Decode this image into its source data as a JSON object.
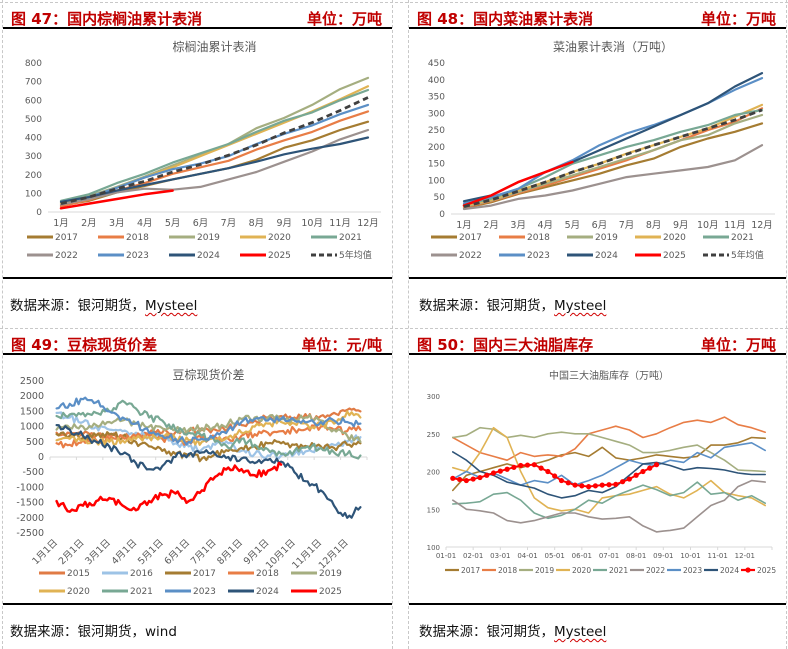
{
  "panels": [
    {
      "figure_label": "图 47：国内棕榈油累计表消",
      "unit_label": "单位：万吨",
      "source_prefix": "数据来源：银河期货，",
      "source_name": "Mysteel"
    },
    {
      "figure_label": "图 48：国内菜油累计表消",
      "unit_label": "单位：万吨",
      "source_prefix": "数据来源：银河期货，",
      "source_name": "Mysteel"
    },
    {
      "figure_label": "图 49：豆棕现货价差",
      "unit_label": "单位：元/吨",
      "source_prefix": "数据来源：银河期货，",
      "source_name": "wind"
    },
    {
      "figure_label": "图 50：国内三大油脂库存",
      "unit_label": "单位：万吨",
      "source_prefix": "数据来源：银河期货，",
      "source_name": "Mysteel"
    }
  ],
  "colors": {
    "2015": "#e07b45",
    "2016": "#9dc3e6",
    "2017": "#a57c32",
    "2018": "#e87d46",
    "2019": "#a5ae80",
    "2020": "#e0b354",
    "2021": "#78a894",
    "2022": "#9c918f",
    "2023": "#5b8fc6",
    "2024": "#2e5478",
    "2025": "#ff0000",
    "avg": "#404040",
    "title_red": "#c00000"
  },
  "chart_data": [
    {
      "type": "line",
      "title": "棕榈油累计表消",
      "xlabel": "",
      "ylabel": "",
      "categories": [
        "1月",
        "2月",
        "3月",
        "4月",
        "5月",
        "6月",
        "7月",
        "8月",
        "9月",
        "10月",
        "11月",
        "12月"
      ],
      "ylim": [
        0,
        800
      ],
      "yticks": [
        0,
        100,
        200,
        300,
        400,
        500,
        600,
        700,
        800
      ],
      "legend_position": "bottom",
      "series": [
        {
          "name": "2017",
          "color_key": "2017",
          "values": [
            35,
            60,
            105,
            140,
            175,
            205,
            235,
            280,
            345,
            385,
            440,
            485
          ]
        },
        {
          "name": "2018",
          "color_key": "2018",
          "values": [
            30,
            65,
            115,
            155,
            205,
            240,
            275,
            335,
            385,
            430,
            490,
            540
          ]
        },
        {
          "name": "2019",
          "color_key": "2019",
          "values": [
            50,
            85,
            135,
            190,
            250,
            305,
            365,
            450,
            505,
            575,
            660,
            720
          ]
        },
        {
          "name": "2020",
          "color_key": "2020",
          "values": [
            45,
            75,
            130,
            185,
            240,
            300,
            360,
            420,
            480,
            540,
            605,
            675
          ]
        },
        {
          "name": "2021",
          "color_key": "2021",
          "values": [
            60,
            95,
            155,
            205,
            265,
            315,
            365,
            430,
            490,
            535,
            600,
            655
          ]
        },
        {
          "name": "2022",
          "color_key": "2022",
          "values": [
            40,
            70,
            105,
            125,
            120,
            135,
            175,
            215,
            270,
            325,
            390,
            440
          ]
        },
        {
          "name": "2023",
          "color_key": "2023",
          "values": [
            55,
            80,
            130,
            185,
            230,
            260,
            300,
            365,
            420,
            465,
            525,
            575
          ]
        },
        {
          "name": "2024",
          "color_key": "2024",
          "values": [
            55,
            80,
            115,
            145,
            175,
            205,
            235,
            270,
            310,
            340,
            365,
            400
          ]
        },
        {
          "name": "2025",
          "color_key": "2025",
          "values": [
            20,
            45,
            70,
            95,
            115
          ]
        },
        {
          "name": "5年均值",
          "color_key": "avg",
          "dashed": true,
          "values": [
            45,
            80,
            125,
            165,
            215,
            255,
            305,
            360,
            425,
            480,
            545,
            615
          ]
        }
      ]
    },
    {
      "type": "line",
      "title": "菜油累计表消（万吨）",
      "xlabel": "",
      "ylabel": "",
      "categories": [
        "1月",
        "2月",
        "3月",
        "4月",
        "5月",
        "6月",
        "7月",
        "8月",
        "9月",
        "10月",
        "11月",
        "12月"
      ],
      "ylim": [
        0,
        450
      ],
      "yticks": [
        0,
        50,
        100,
        150,
        200,
        250,
        300,
        350,
        400,
        450
      ],
      "legend_position": "bottom",
      "series": [
        {
          "name": "2017",
          "color_key": "2017",
          "values": [
            18,
            35,
            60,
            80,
            100,
            120,
            145,
            165,
            200,
            225,
            245,
            270
          ]
        },
        {
          "name": "2018",
          "color_key": "2018",
          "values": [
            20,
            38,
            62,
            85,
            110,
            135,
            160,
            190,
            220,
            250,
            275,
            315
          ]
        },
        {
          "name": "2019",
          "color_key": "2019",
          "values": [
            22,
            40,
            65,
            90,
            115,
            140,
            165,
            190,
            220,
            235,
            270,
            295
          ]
        },
        {
          "name": "2020",
          "color_key": "2020",
          "values": [
            25,
            42,
            70,
            95,
            125,
            150,
            180,
            205,
            230,
            255,
            290,
            325
          ]
        },
        {
          "name": "2021",
          "color_key": "2021",
          "values": [
            28,
            45,
            75,
            110,
            150,
            175,
            200,
            220,
            245,
            265,
            295,
            310
          ]
        },
        {
          "name": "2022",
          "color_key": "2022",
          "values": [
            15,
            25,
            45,
            55,
            70,
            90,
            110,
            120,
            130,
            140,
            160,
            205
          ]
        },
        {
          "name": "2023",
          "color_key": "2023",
          "values": [
            32,
            50,
            75,
            125,
            160,
            205,
            240,
            265,
            295,
            330,
            370,
            405
          ]
        },
        {
          "name": "2024",
          "color_key": "2024",
          "values": [
            38,
            55,
            95,
            125,
            155,
            190,
            225,
            260,
            295,
            330,
            380,
            420
          ]
        },
        {
          "name": "2025",
          "color_key": "2025",
          "values": [
            25,
            55,
            95,
            125,
            155
          ]
        },
        {
          "name": "5年均值",
          "color_key": "avg",
          "dashed": true,
          "values": [
            22,
            42,
            68,
            95,
            125,
            150,
            178,
            205,
            230,
            255,
            280,
            310
          ]
        }
      ]
    },
    {
      "type": "line",
      "title": "豆棕现货价差",
      "xlabel": "",
      "ylabel": "",
      "categories": [
        "1月1日",
        "2月1日",
        "3月1日",
        "4月1日",
        "5月1日",
        "6月1日",
        "7月1日",
        "8月1日",
        "9月1日",
        "10月1日",
        "11月1日",
        "12月1日"
      ],
      "ylim": [
        -2500,
        2500
      ],
      "yticks": [
        -2500,
        -2000,
        -1500,
        -1000,
        -500,
        0,
        500,
        1000,
        1500,
        2000,
        2500
      ],
      "legend_position": "bottom",
      "note": "daily series; values below are approximate semi-monthly samples (24 points, 1月1日 to 12月16日)",
      "series": [
        {
          "name": "2015",
          "color_key": "2015",
          "values": [
            800,
            780,
            760,
            720,
            700,
            700,
            720,
            760,
            800,
            820,
            850,
            880,
            900,
            950,
            1050,
            1200,
            1300,
            1350,
            1300,
            1300,
            1350,
            1450,
            1550,
            1500
          ]
        },
        {
          "name": "2016",
          "color_key": "2016",
          "values": [
            1450,
            1300,
            1150,
            1000,
            900,
            850,
            800,
            700,
            600,
            450,
            350,
            250,
            400,
            450,
            200,
            100,
            50,
            50,
            100,
            200,
            300,
            400,
            500,
            650
          ]
        },
        {
          "name": "2017",
          "color_key": "2017",
          "values": [
            750,
            700,
            650,
            700,
            750,
            650,
            500,
            350,
            200,
            100,
            50,
            -50,
            100,
            200,
            300,
            350,
            450,
            450,
            400,
            350,
            350,
            300,
            400,
            450
          ]
        },
        {
          "name": "2018",
          "color_key": "2018",
          "values": [
            450,
            400,
            550,
            550,
            600,
            650,
            650,
            700,
            600,
            550,
            500,
            600,
            650,
            600,
            700,
            750,
            800,
            850,
            900,
            950,
            1000,
            900,
            850,
            900
          ]
        },
        {
          "name": "2019",
          "color_key": "2019",
          "values": [
            900,
            950,
            1000,
            1050,
            1150,
            1200,
            1100,
            1000,
            950,
            900,
            900,
            950,
            1000,
            1100,
            1250,
            1300,
            1300,
            1250,
            1250,
            1300,
            1200,
            900,
            700,
            500
          ]
        },
        {
          "name": "2020",
          "color_key": "2020",
          "values": [
            550,
            600,
            550,
            500,
            500,
            550,
            600,
            650,
            700,
            600,
            550,
            500,
            600,
            650,
            800,
            1000,
            1100,
            1150,
            1100,
            1050,
            1050,
            1100,
            1500,
            1300
          ]
        },
        {
          "name": "2021",
          "color_key": "2021",
          "values": [
            1350,
            1400,
            1450,
            1450,
            1500,
            1850,
            1600,
            1300,
            1200,
            900,
            800,
            700,
            500,
            300,
            600,
            400,
            250,
            100,
            200,
            350,
            300,
            150,
            100,
            50
          ]
        },
        {
          "name": "2023",
          "color_key": "2023",
          "values": [
            1600,
            1750,
            1900,
            1800,
            1500,
            1300,
            1100,
            800,
            700,
            600,
            500,
            600,
            700,
            900,
            1150,
            1250,
            1200,
            1250,
            1200,
            1150,
            1150,
            1200,
            1150,
            1100
          ]
        },
        {
          "name": "2024",
          "color_key": "2024",
          "values": [
            1050,
            900,
            700,
            500,
            350,
            100,
            -200,
            -400,
            -300,
            0,
            100,
            150,
            100,
            0,
            -50,
            -200,
            -100,
            -150,
            -500,
            -800,
            -1100,
            -1600,
            -2000,
            -1650
          ]
        },
        {
          "name": "2025",
          "color_key": "2025",
          "values": [
            -1450,
            -1800,
            -1600,
            -1450,
            -1350,
            -1600,
            -1750,
            -1450,
            -1250,
            -1200,
            -1450,
            -1100,
            -650,
            -350,
            -400,
            -600,
            -450,
            -250
          ]
        }
      ]
    },
    {
      "type": "line",
      "title": "中国三大油脂库存（万吨）",
      "xlabel": "",
      "ylabel": "",
      "categories": [
        "01-01",
        "02-01",
        "03-01",
        "04-01",
        "05-01",
        "06-01",
        "07-01",
        "08-01",
        "09-01",
        "10-01",
        "11-01",
        "12-01"
      ],
      "ylim": [
        100,
        300
      ],
      "yticks": [
        100,
        150,
        200,
        250,
        300
      ],
      "legend_position": "bottom",
      "note": "weekly series; values below are approximate semi-monthly samples (24 points)",
      "series": [
        {
          "name": "2017",
          "color_key": "2017",
          "values": [
            175,
            195,
            200,
            205,
            210,
            205,
            210,
            215,
            222,
            225,
            220,
            232,
            218,
            215,
            218,
            222,
            220,
            218,
            220,
            235,
            235,
            238,
            245,
            244
          ]
        },
        {
          "name": "2018",
          "color_key": "2018",
          "values": [
            245,
            235,
            225,
            220,
            215,
            225,
            220,
            222,
            220,
            230,
            250,
            255,
            260,
            255,
            245,
            250,
            258,
            265,
            268,
            265,
            272,
            262,
            258,
            252
          ]
        },
        {
          "name": "2019",
          "color_key": "2019",
          "values": [
            245,
            248,
            258,
            256,
            245,
            248,
            245,
            250,
            252,
            250,
            250,
            245,
            240,
            235,
            225,
            225,
            228,
            232,
            235,
            225,
            215,
            202,
            201,
            200
          ]
        },
        {
          "name": "2020",
          "color_key": "2020",
          "values": [
            205,
            200,
            225,
            258,
            245,
            200,
            165,
            152,
            148,
            150,
            145,
            165,
            168,
            170,
            175,
            180,
            170,
            165,
            175,
            188,
            172,
            168,
            165,
            155
          ]
        },
        {
          "name": "2021",
          "color_key": "2021",
          "values": [
            157,
            158,
            160,
            170,
            172,
            162,
            145,
            138,
            142,
            150,
            162,
            158,
            168,
            175,
            182,
            176,
            168,
            172,
            186,
            170,
            172,
            162,
            168,
            158
          ]
        },
        {
          "name": "2022",
          "color_key": "2022",
          "values": [
            162,
            150,
            148,
            145,
            135,
            132,
            135,
            140,
            145,
            145,
            140,
            137,
            138,
            140,
            128,
            120,
            122,
            125,
            140,
            155,
            162,
            180,
            188,
            186
          ]
        },
        {
          "name": "2023",
          "color_key": "2023",
          "values": [
            190,
            200,
            192,
            198,
            190,
            182,
            188,
            185,
            195,
            182,
            188,
            195,
            205,
            215,
            210,
            208,
            215,
            212,
            225,
            218,
            232,
            235,
            238,
            228
          ]
        },
        {
          "name": "2024",
          "color_key": "2024",
          "values": [
            226,
            215,
            200,
            195,
            186,
            182,
            178,
            170,
            165,
            168,
            175,
            172,
            180,
            195,
            210,
            212,
            208,
            202,
            205,
            204,
            202,
            198,
            196,
            196
          ]
        },
        {
          "name": "2025",
          "color_key": "2025",
          "marker": true,
          "values": [
            191,
            188,
            192,
            198,
            203,
            208,
            209,
            200,
            188,
            182,
            180,
            182,
            183,
            190,
            200,
            209
          ]
        }
      ]
    }
  ]
}
